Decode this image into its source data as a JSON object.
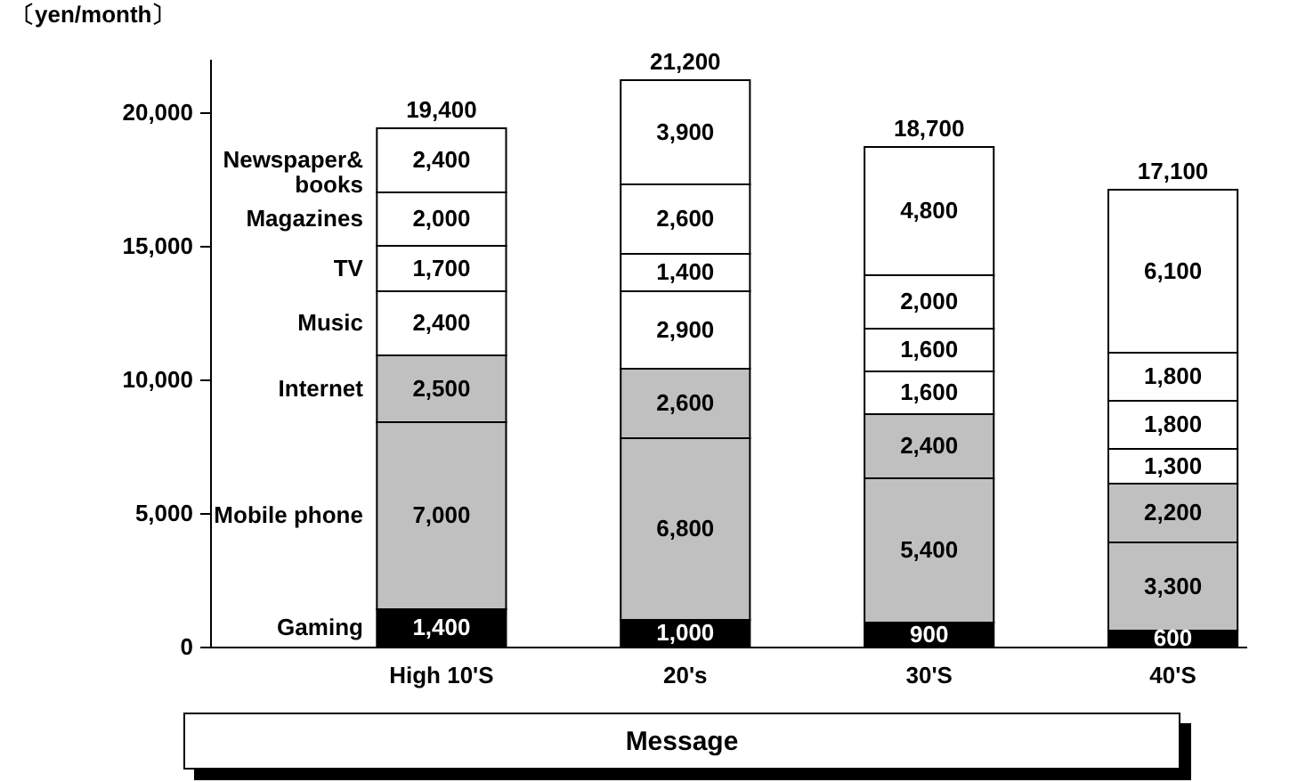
{
  "chart_data": {
    "type": "bar",
    "stacked": true,
    "ylabel": "〔yen/month〕",
    "categories": [
      "High 10'S",
      "20's",
      "30'S",
      "40'S"
    ],
    "series": [
      {
        "name": "Gaming",
        "color": "#000000",
        "values": [
          1400,
          1000,
          900,
          600
        ],
        "value_labels": [
          "1,400",
          "1,000",
          "900",
          "600"
        ]
      },
      {
        "name": "Mobile phone",
        "color": "#c0c0c0",
        "values": [
          7000,
          6800,
          5400,
          3300
        ],
        "value_labels": [
          "7,000",
          "6,800",
          "5,400",
          "3,300"
        ]
      },
      {
        "name": "Internet",
        "color": "#c0c0c0",
        "values": [
          2500,
          2600,
          2400,
          2200
        ],
        "value_labels": [
          "2,500",
          "2,600",
          "2,400",
          "2,200"
        ]
      },
      {
        "name": "Music",
        "color": "#ffffff",
        "values": [
          2400,
          2900,
          1600,
          1300
        ],
        "value_labels": [
          "2,400",
          "2,900",
          "1,600",
          "1,300"
        ]
      },
      {
        "name": "TV",
        "color": "#ffffff",
        "values": [
          1700,
          1400,
          1600,
          1800
        ],
        "value_labels": [
          "1,700",
          "1,400",
          "1,600",
          "1,800"
        ]
      },
      {
        "name": "Magazines",
        "color": "#ffffff",
        "values": [
          2000,
          2600,
          2000,
          1800
        ],
        "value_labels": [
          "2,000",
          "2,600",
          "2,000",
          "1,800"
        ]
      },
      {
        "name": "Newspaper&books",
        "color": "#ffffff",
        "values": [
          2400,
          3900,
          4800,
          6100
        ],
        "value_labels": [
          "2,400",
          "3,900",
          "4,800",
          "6,100"
        ]
      }
    ],
    "totals": [
      "19,400",
      "21,200",
      "18,700",
      "17,100"
    ],
    "ylim": [
      0,
      22000
    ],
    "yticks": [
      0,
      {
        "value": 5000,
        "label": "5,000"
      },
      {
        "value": 10000,
        "label": "10,000"
      },
      {
        "value": 15000,
        "label": "15,000"
      },
      {
        "value": 20000,
        "label": "20,000"
      }
    ],
    "grid": false,
    "legend": false,
    "annotations": [
      "Message"
    ]
  }
}
